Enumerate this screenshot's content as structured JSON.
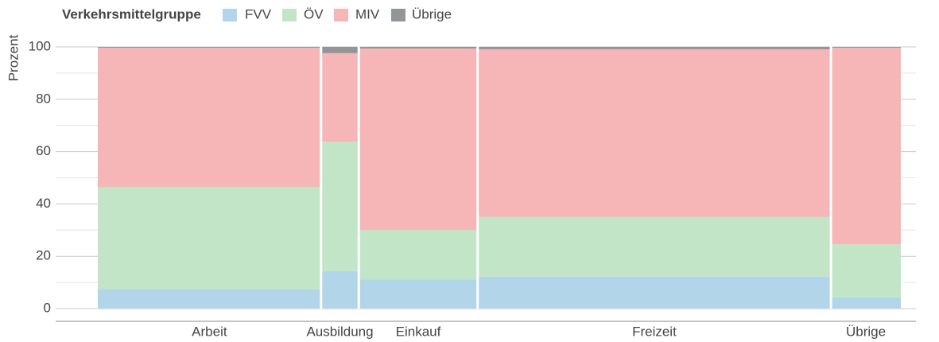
{
  "chart_data": {
    "type": "mosaic",
    "legend_title": "Verkehrsmittelgruppe",
    "y_label": "Prozent",
    "categories": [
      "Arbeit",
      "Ausbildung",
      "Einkauf",
      "Freizeit",
      "Übrige"
    ],
    "widths": [
      27.8,
      4.7,
      14.8,
      44.0,
      8.7
    ],
    "series": [
      {
        "name": "FVV",
        "color": "#b3d5ea",
        "values": [
          7.3,
          14.3,
          11.2,
          12.2,
          4.3
        ]
      },
      {
        "name": "ÖV",
        "color": "#c3e5c7",
        "values": [
          39.2,
          49.5,
          18.9,
          22.8,
          20.3
        ]
      },
      {
        "name": "MIV",
        "color": "#f6b5b7",
        "values": [
          53.2,
          33.8,
          69.3,
          64.1,
          75.1
        ]
      },
      {
        "name": "Übrige",
        "color": "#929699",
        "values": [
          0.3,
          2.4,
          0.6,
          0.9,
          0.3
        ]
      }
    ],
    "ylim": [
      0,
      100
    ],
    "yticks": [
      0,
      20,
      40,
      60,
      80,
      100
    ],
    "minor_yticks": [
      10,
      30,
      50,
      70,
      90
    ],
    "grid": true
  }
}
